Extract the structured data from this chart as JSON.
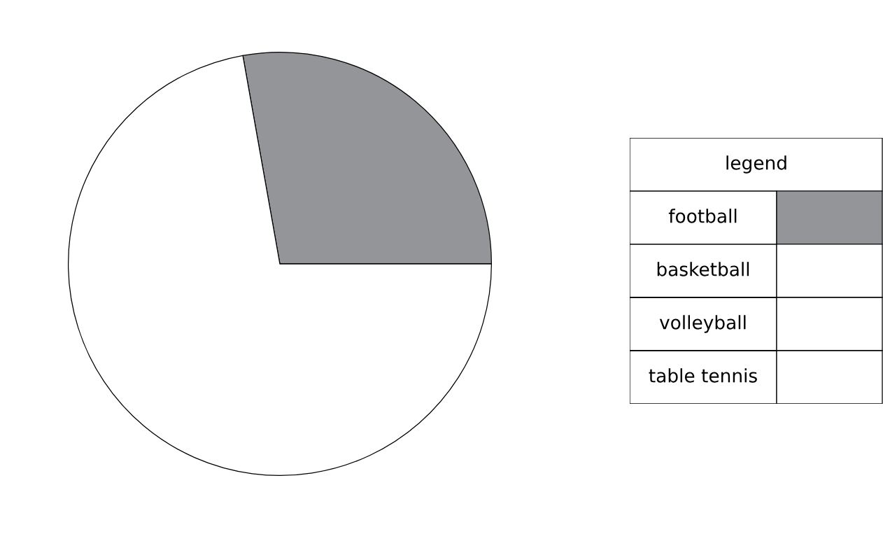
{
  "chart_data": [
    {
      "type": "pie",
      "categories": [
        null,
        null
      ],
      "values": [
        27.8,
        72.2
      ],
      "colors": [
        "#939598",
        "#ffffff"
      ]
    },
    {
      "type": "other",
      "title": "legend",
      "categories": [
        "football",
        "basketball",
        "volleyball",
        "table tennis"
      ],
      "colors": [
        "#939598",
        "#ffffff",
        "#ffffff",
        "#ffffff"
      ]
    }
  ]
}
